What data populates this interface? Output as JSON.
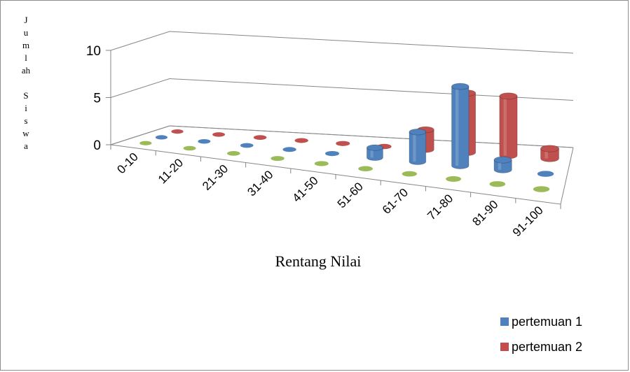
{
  "chart_data": {
    "type": "bar",
    "style": "3d-cylinder",
    "title": "",
    "xlabel": "Rentang  Nilai",
    "ylabel": "Jumlah Siswa",
    "ylim": [
      0,
      10
    ],
    "yticks": [
      "0",
      "5",
      "10"
    ],
    "categories": [
      "0-10",
      "11-20",
      "21-30",
      "31-40",
      "41-50",
      "51-60",
      "61-70",
      "71-80",
      "81-90",
      "91-100"
    ],
    "series": [
      {
        "name": "",
        "color": "#9bbb59",
        "values": [
          0,
          0,
          0,
          0,
          0,
          0,
          0,
          0,
          0,
          0
        ]
      },
      {
        "name": "pertemuan 1",
        "color": "#4f81bd",
        "values": [
          0,
          0,
          0,
          0,
          0,
          1,
          3,
          8,
          1,
          0
        ]
      },
      {
        "name": "pertemuan 2",
        "color": "#c0504d",
        "values": [
          0,
          0,
          0,
          0,
          0,
          0,
          2,
          6,
          6,
          1
        ]
      }
    ],
    "grid": true,
    "legend_position": "bottom-right"
  },
  "ylabel_lines": [
    "J",
    "u",
    "m",
    "l",
    "ah",
    "",
    "S",
    "i",
    "s",
    "w",
    "a"
  ],
  "legend": {
    "items": [
      {
        "label": "pertemuan 1",
        "color": "#4f81bd"
      },
      {
        "label": "pertemuan 2",
        "color": "#c0504d"
      }
    ]
  }
}
